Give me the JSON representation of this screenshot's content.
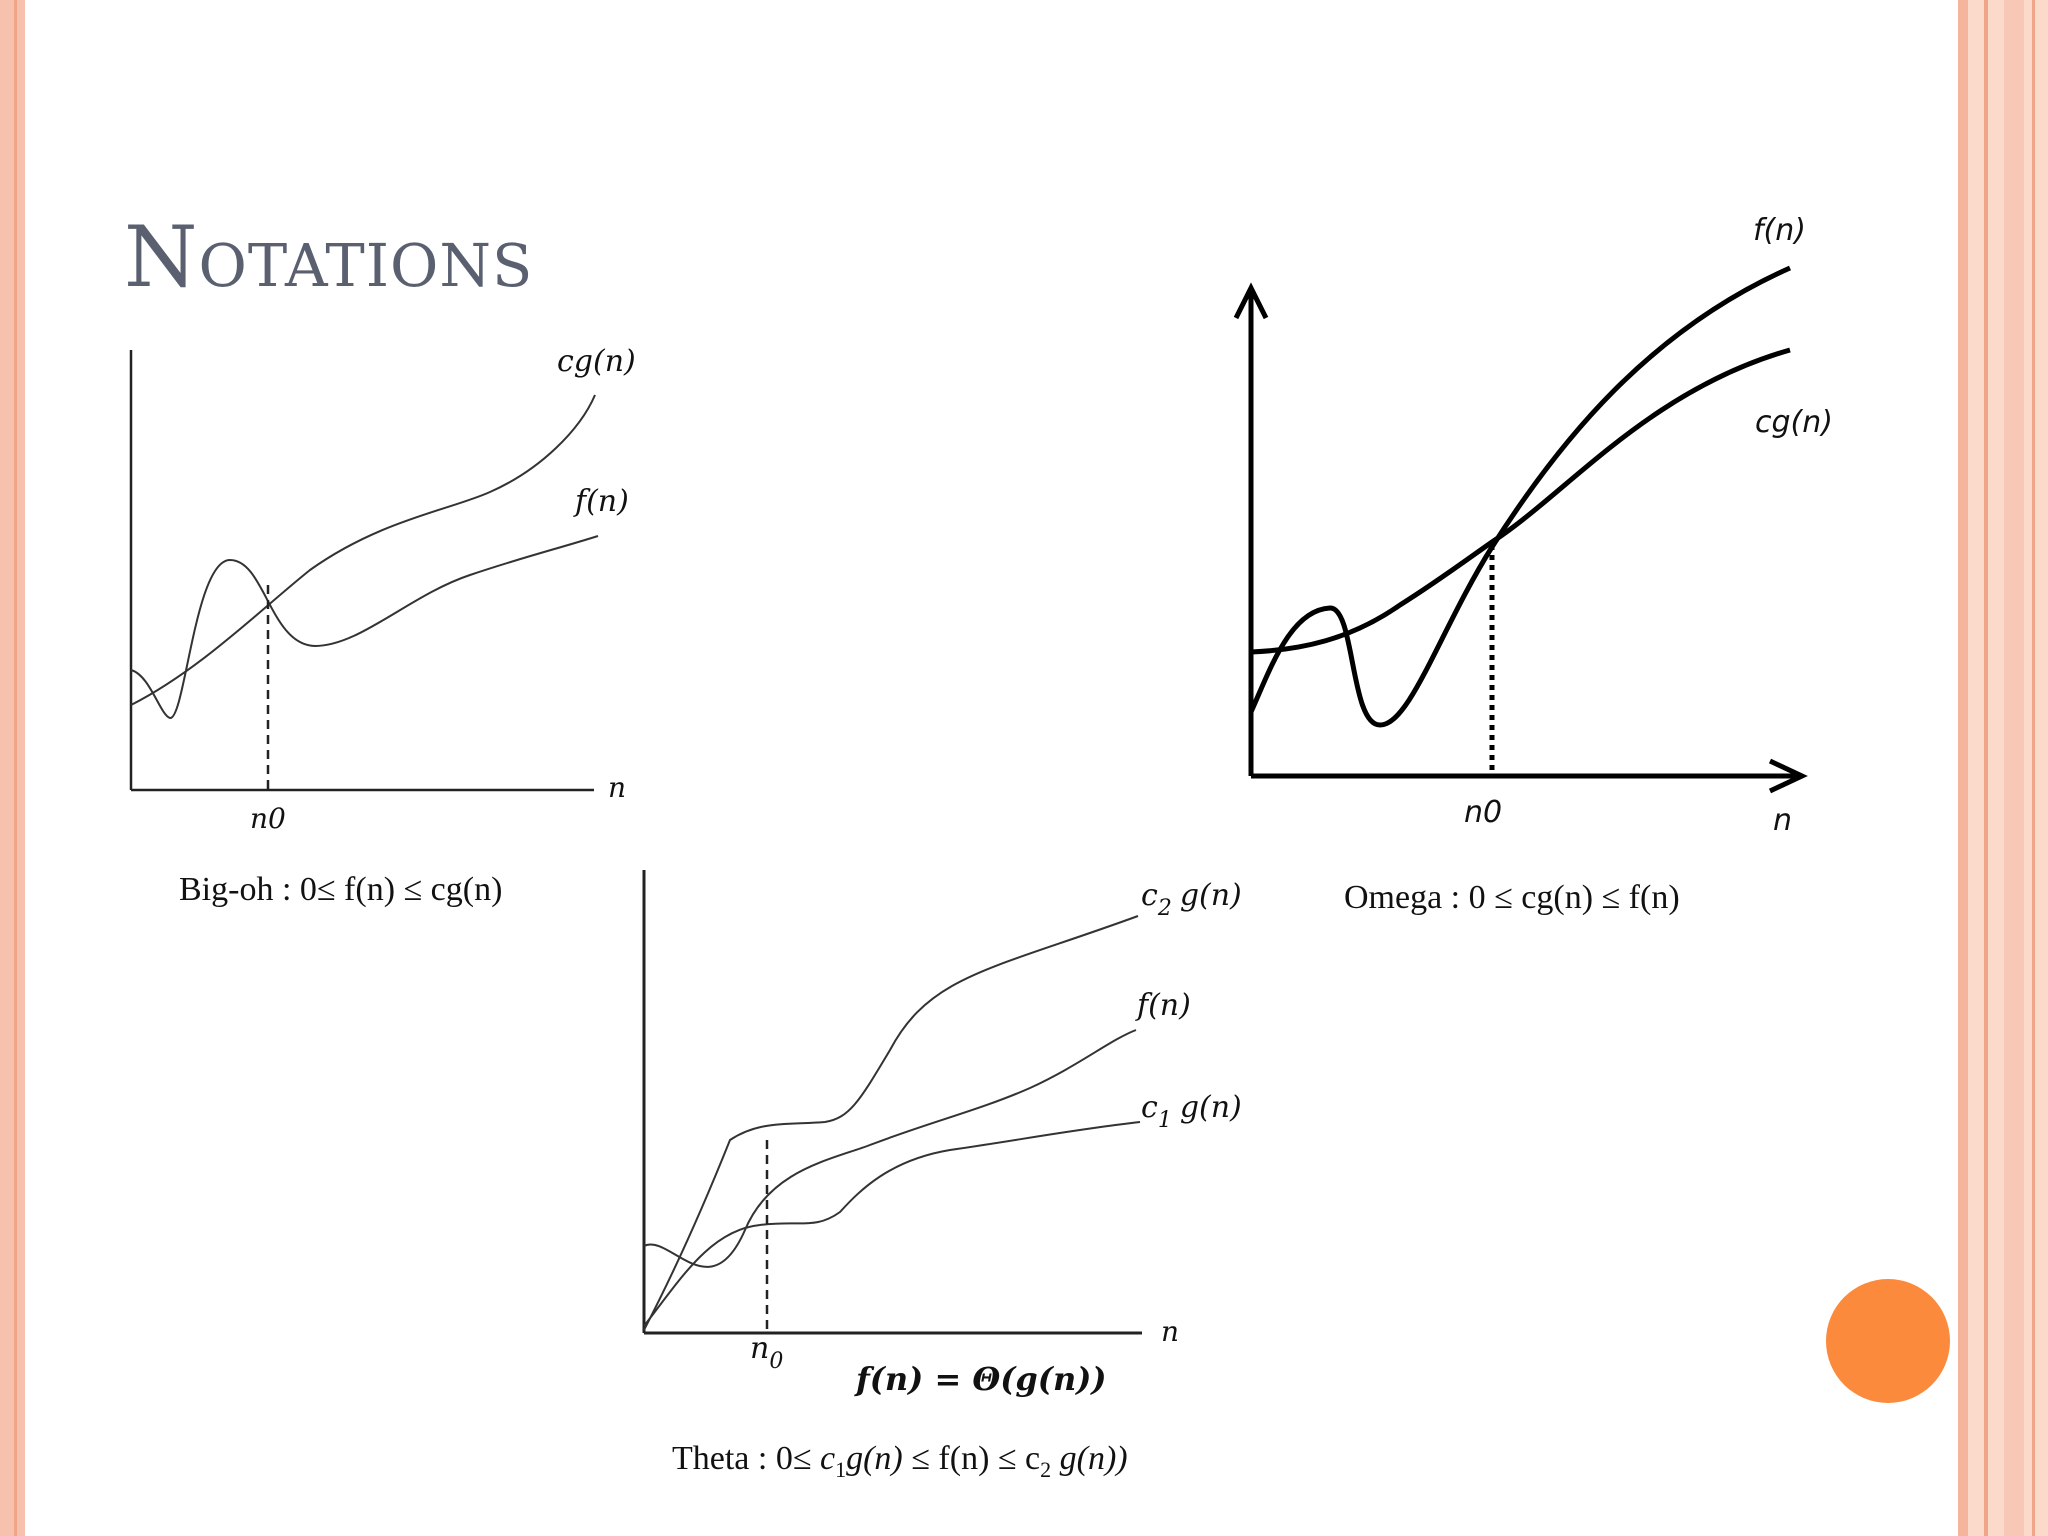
{
  "slide": {
    "title": "Notations",
    "colors": {
      "title": "#5a6070",
      "accent_circle": "#fb8a3c",
      "border": "#f6c2ae"
    }
  },
  "big_oh": {
    "caption": "Big-oh : 0≤ f(n) ≤ cg(n)",
    "labels": {
      "upper_curve": "cg(n)",
      "lower_curve": "f(n)",
      "x_axis": "n",
      "threshold": "n0"
    }
  },
  "omega": {
    "caption": "Omega : 0 ≤  cg(n) ≤ f(n)",
    "labels": {
      "upper_curve": "f(n)",
      "lower_curve": "cg(n)",
      "x_axis": "n",
      "threshold": "n0"
    }
  },
  "theta": {
    "caption_prefix": "Theta : 0≤ ",
    "caption_c1": "c",
    "caption_c1_sub": "1",
    "caption_g1": "g(n)",
    "caption_mid": " ≤ f(n) ≤ c",
    "caption_c2_sub": "2",
    "caption_g2": " g(n))",
    "labels": {
      "upper_c": "c",
      "upper_sub": "2",
      "upper_g": "g(n)",
      "middle_curve": "f(n)",
      "lower_c": "c",
      "lower_sub": "1",
      "lower_g": "g(n)",
      "x_axis": "n",
      "threshold": "n",
      "threshold_sub": "0",
      "formula": "f(n) = Θ(g(n))"
    }
  }
}
